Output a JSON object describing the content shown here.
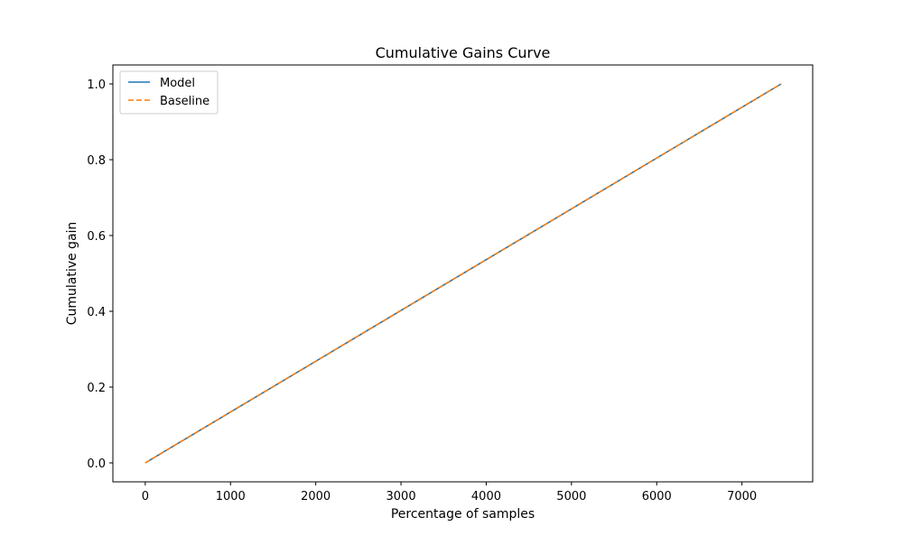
{
  "chart_data": {
    "type": "line",
    "title": "Cumulative Gains Curve",
    "xlabel": "Percentage of samples",
    "ylabel": "Cumulative gain",
    "xlim": [
      -380,
      7830
    ],
    "ylim": [
      -0.05,
      1.05
    ],
    "x_ticks": [
      0,
      1000,
      2000,
      3000,
      4000,
      5000,
      6000,
      7000
    ],
    "y_ticks": [
      0.0,
      0.2,
      0.4,
      0.6,
      0.8,
      1.0
    ],
    "x_tick_labels": [
      "0",
      "1000",
      "2000",
      "3000",
      "4000",
      "5000",
      "6000",
      "7000"
    ],
    "y_tick_labels": [
      "0.0",
      "0.2",
      "0.4",
      "0.6",
      "0.8",
      "1.0"
    ],
    "grid": false,
    "legend_position": "top-left",
    "series": [
      {
        "name": "Model",
        "color": "#1f77b4",
        "style": "solid",
        "x": [
          0,
          7460
        ],
        "y": [
          0.0,
          1.0
        ]
      },
      {
        "name": "Baseline",
        "color": "#ff7f0e",
        "style": "dashed",
        "x": [
          0,
          7460
        ],
        "y": [
          0.0,
          1.0
        ]
      }
    ]
  }
}
